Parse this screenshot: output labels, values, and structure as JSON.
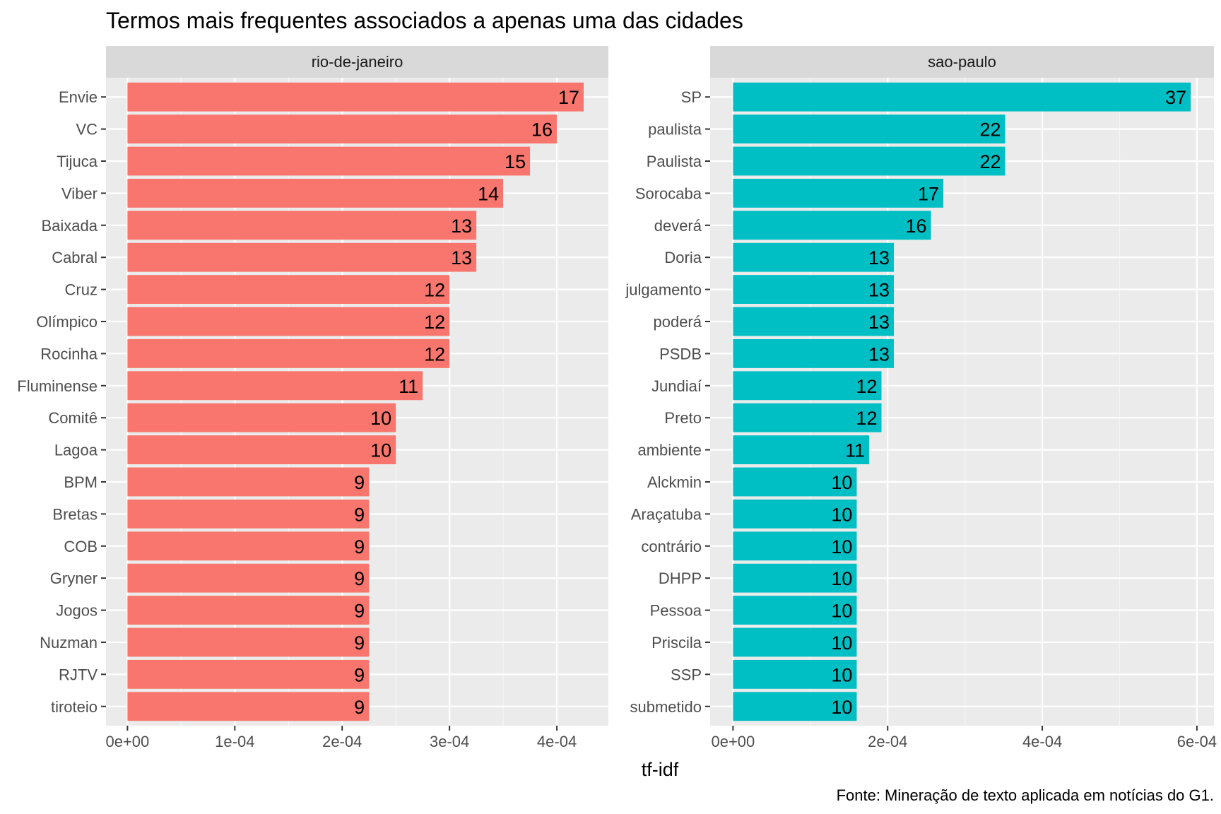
{
  "title": "Termos mais frequentes associados a apenas uma das cidades",
  "xlabel": "tf-idf",
  "caption": "Fonte: Mineração de texto aplicada em notícias do G1.",
  "chart_data": [
    {
      "type": "bar",
      "orientation": "horizontal",
      "facet": "rio-de-janeiro",
      "color": "#F8766D",
      "xlim": [
        -2e-05,
        0.000448
      ],
      "x_ticks": [
        "0e+00",
        "1e-04",
        "2e-04",
        "3e-04",
        "4e-04"
      ],
      "x_tick_values": [
        0,
        0.0001,
        0.0002,
        0.0003,
        0.0004
      ],
      "categories": [
        "Envie",
        "VC",
        "Tijuca",
        "Viber",
        "Baixada",
        "Cabral",
        "Cruz",
        "Olímpico",
        "Rocinha",
        "Fluminense",
        "Comitê",
        "Lagoa",
        "BPM",
        "Bretas",
        "COB",
        "Gryner",
        "Jogos",
        "Nuzman",
        "RJTV",
        "tiroteio"
      ],
      "values": [
        0.000425,
        0.0004,
        0.000375,
        0.00035,
        0.000325,
        0.000325,
        0.0003,
        0.0003,
        0.0003,
        0.000275,
        0.00025,
        0.00025,
        0.000225,
        0.000225,
        0.000225,
        0.000225,
        0.000225,
        0.000225,
        0.000225,
        0.000225
      ],
      "labels": [
        "17",
        "16",
        "15",
        "14",
        "13",
        "13",
        "12",
        "12",
        "12",
        "11",
        "10",
        "10",
        "9",
        "9",
        "9",
        "9",
        "9",
        "9",
        "9",
        "9"
      ]
    },
    {
      "type": "bar",
      "orientation": "horizontal",
      "facet": "sao-paulo",
      "color": "#00BFC4",
      "xlim": [
        -2.96e-05,
        0.000622
      ],
      "x_ticks": [
        "0e+00",
        "2e-04",
        "4e-04",
        "6e-04"
      ],
      "x_tick_values": [
        0,
        0.0002,
        0.0004,
        0.0006
      ],
      "categories": [
        "SP",
        "paulista",
        "Paulista",
        "Sorocaba",
        "deverá",
        "Doria",
        "julgamento",
        "poderá",
        "PSDB",
        "Jundiaí",
        "Preto",
        "ambiente",
        "Alckmin",
        "Araçatuba",
        "contrário",
        "DHPP",
        "Pessoa",
        "Priscila",
        "SSP",
        "submetido"
      ],
      "values": [
        0.000592,
        0.000352,
        0.000352,
        0.000272,
        0.000256,
        0.000208,
        0.000208,
        0.000208,
        0.000208,
        0.000192,
        0.000192,
        0.000176,
        0.00016,
        0.00016,
        0.00016,
        0.00016,
        0.00016,
        0.00016,
        0.00016,
        0.00016
      ],
      "labels": [
        "37",
        "22",
        "22",
        "17",
        "16",
        "13",
        "13",
        "13",
        "13",
        "12",
        "12",
        "11",
        "10",
        "10",
        "10",
        "10",
        "10",
        "10",
        "10",
        "10"
      ]
    }
  ]
}
